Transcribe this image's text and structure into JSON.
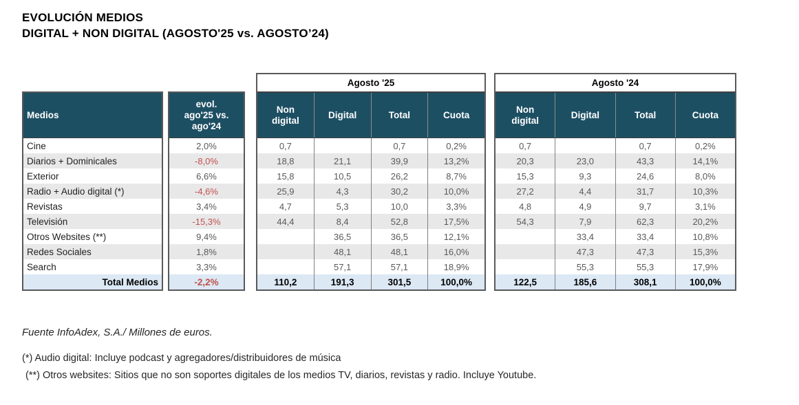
{
  "title": {
    "line1": "EVOLUCIÓN MEDIOS",
    "line2": "DIGITAL + NON DIGITAL (AGOSTO'25 vs. AGOSTO’24)"
  },
  "table": {
    "medios_header": "Medios",
    "evol_header": "evol.\nago'25 vs.\nago'24",
    "group_headers": {
      "a25": "Agosto '25",
      "a24": "Agosto '24"
    },
    "value_columns": [
      "Non\ndigital",
      "Digital",
      "Total",
      "Cuota"
    ],
    "rows": [
      {
        "medio": "Cine",
        "evol": "2,0%",
        "negative": false,
        "total": false,
        "a25": [
          "0,7",
          "",
          "0,7",
          "0,2%"
        ],
        "a24": [
          "0,7",
          "",
          "0,7",
          "0,2%"
        ]
      },
      {
        "medio": "Diarios + Dominicales",
        "evol": "-8,0%",
        "negative": true,
        "total": false,
        "a25": [
          "18,8",
          "21,1",
          "39,9",
          "13,2%"
        ],
        "a24": [
          "20,3",
          "23,0",
          "43,3",
          "14,1%"
        ]
      },
      {
        "medio": "Exterior",
        "evol": "6,6%",
        "negative": false,
        "total": false,
        "a25": [
          "15,8",
          "10,5",
          "26,2",
          "8,7%"
        ],
        "a24": [
          "15,3",
          "9,3",
          "24,6",
          "8,0%"
        ]
      },
      {
        "medio": "Radio + Audio digital (*)",
        "evol": "-4,6%",
        "negative": true,
        "total": false,
        "a25": [
          "25,9",
          "4,3",
          "30,2",
          "10,0%"
        ],
        "a24": [
          "27,2",
          "4,4",
          "31,7",
          "10,3%"
        ]
      },
      {
        "medio": "Revistas",
        "evol": "3,4%",
        "negative": false,
        "total": false,
        "a25": [
          "4,7",
          "5,3",
          "10,0",
          "3,3%"
        ],
        "a24": [
          "4,8",
          "4,9",
          "9,7",
          "3,1%"
        ]
      },
      {
        "medio": "Televisión",
        "evol": "-15,3%",
        "negative": true,
        "total": false,
        "a25": [
          "44,4",
          "8,4",
          "52,8",
          "17,5%"
        ],
        "a24": [
          "54,3",
          "7,9",
          "62,3",
          "20,2%"
        ]
      },
      {
        "medio": "Otros Websites (**)",
        "evol": "9,4%",
        "negative": false,
        "total": false,
        "a25": [
          "",
          "36,5",
          "36,5",
          "12,1%"
        ],
        "a24": [
          "",
          "33,4",
          "33,4",
          "10,8%"
        ]
      },
      {
        "medio": "Redes Sociales",
        "evol": "1,8%",
        "negative": false,
        "total": false,
        "a25": [
          "",
          "48,1",
          "48,1",
          "16,0%"
        ],
        "a24": [
          "",
          "47,3",
          "47,3",
          "15,3%"
        ]
      },
      {
        "medio": "Search",
        "evol": "3,3%",
        "negative": false,
        "total": false,
        "a25": [
          "",
          "57,1",
          "57,1",
          "18,9%"
        ],
        "a24": [
          "",
          "55,3",
          "55,3",
          "17,9%"
        ]
      },
      {
        "medio": "Total Medios",
        "evol": "-2,2%",
        "negative": true,
        "total": true,
        "a25": [
          "110,2",
          "191,3",
          "301,5",
          "100,0%"
        ],
        "a24": [
          "122,5",
          "185,6",
          "308,1",
          "100,0%"
        ]
      }
    ]
  },
  "footer": {
    "source": "Fuente InfoAdex, S.A./ Millones de euros.",
    "note1": "(*) Audio digital: Incluye podcast y agregadores/distribuidores de música",
    "note2": "(**) Otros websites: Sitios que no son soportes digitales de los medios TV, diarios, revistas y radio. Incluye Youtube."
  },
  "colors": {
    "header_bg": "#1d4f63",
    "header_text": "#ffffff",
    "negative": "#c0504d",
    "total_row_bg": "#dce8f4",
    "stripe": "#e8e8e8"
  },
  "chart_data": {
    "type": "table",
    "title": "EVOLUCIÓN MEDIOS — DIGITAL + NON DIGITAL (AGOSTO'25 vs. AGOSTO’24)",
    "units": "Millones de euros",
    "columns": [
      "Medios",
      "evol. ago'25 vs. ago'24 (%)",
      "Agosto '25 Non digital",
      "Agosto '25 Digital",
      "Agosto '25 Total",
      "Agosto '25 Cuota (%)",
      "Agosto '24 Non digital",
      "Agosto '24 Digital",
      "Agosto '24 Total",
      "Agosto '24 Cuota (%)"
    ],
    "rows": [
      [
        "Cine",
        2.0,
        0.7,
        null,
        0.7,
        0.2,
        0.7,
        null,
        0.7,
        0.2
      ],
      [
        "Diarios + Dominicales",
        -8.0,
        18.8,
        21.1,
        39.9,
        13.2,
        20.3,
        23.0,
        43.3,
        14.1
      ],
      [
        "Exterior",
        6.6,
        15.8,
        10.5,
        26.2,
        8.7,
        15.3,
        9.3,
        24.6,
        8.0
      ],
      [
        "Radio + Audio digital (*)",
        -4.6,
        25.9,
        4.3,
        30.2,
        10.0,
        27.2,
        4.4,
        31.7,
        10.3
      ],
      [
        "Revistas",
        3.4,
        4.7,
        5.3,
        10.0,
        3.3,
        4.8,
        4.9,
        9.7,
        3.1
      ],
      [
        "Televisión",
        -15.3,
        44.4,
        8.4,
        52.8,
        17.5,
        54.3,
        7.9,
        62.3,
        20.2
      ],
      [
        "Otros Websites (**)",
        9.4,
        null,
        36.5,
        36.5,
        12.1,
        null,
        33.4,
        33.4,
        10.8
      ],
      [
        "Redes Sociales",
        1.8,
        null,
        48.1,
        48.1,
        16.0,
        null,
        47.3,
        47.3,
        15.3
      ],
      [
        "Search",
        3.3,
        null,
        57.1,
        57.1,
        18.9,
        null,
        55.3,
        55.3,
        17.9
      ],
      [
        "Total Medios",
        -2.2,
        110.2,
        191.3,
        301.5,
        100.0,
        122.5,
        185.6,
        308.1,
        100.0
      ]
    ]
  }
}
